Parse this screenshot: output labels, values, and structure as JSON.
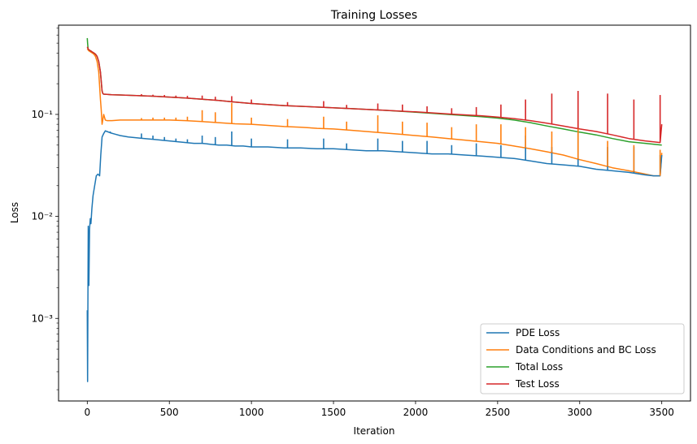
{
  "chart_data": {
    "type": "line",
    "title": "Training Losses",
    "xlabel": "Iteration",
    "ylabel": "Loss",
    "yscale": "log",
    "xlim": [
      -175,
      3675
    ],
    "ylim": [
      0.000155,
      0.75
    ],
    "x_ticks": [
      0,
      500,
      1000,
      1500,
      2000,
      2500,
      3000,
      3500
    ],
    "x_tick_labels": [
      "0",
      "500",
      "1000",
      "1500",
      "2000",
      "2500",
      "3000",
      "3500"
    ],
    "y_ticks": [
      0.001,
      0.01,
      0.1
    ],
    "y_tick_labels": [
      "10⁻³",
      "10⁻²",
      "10⁻¹"
    ],
    "grid": false,
    "legend_position": "lower-right",
    "series": [
      {
        "name": "PDE Loss",
        "color": "#1f77b4",
        "x": [
          0,
          2,
          4,
          6,
          8,
          10,
          14,
          18,
          22,
          28,
          35,
          45,
          55,
          65,
          75,
          82,
          90,
          100,
          110,
          120,
          140,
          170,
          200,
          250,
          300,
          350,
          400,
          450,
          500,
          550,
          600,
          650,
          700,
          750,
          800,
          850,
          900,
          950,
          1000,
          1100,
          1200,
          1300,
          1400,
          1500,
          1600,
          1700,
          1800,
          1900,
          2000,
          2100,
          2200,
          2300,
          2400,
          2500,
          2600,
          2700,
          2800,
          2900,
          3000,
          3100,
          3200,
          3300,
          3400,
          3450,
          3490,
          3500
        ],
        "y": [
          0.0012,
          0.00024,
          0.0015,
          0.008,
          0.0045,
          0.0021,
          0.0075,
          0.0095,
          0.0085,
          0.012,
          0.016,
          0.02,
          0.025,
          0.026,
          0.025,
          0.04,
          0.06,
          0.065,
          0.069,
          0.068,
          0.066,
          0.064,
          0.062,
          0.06,
          0.059,
          0.058,
          0.057,
          0.056,
          0.055,
          0.054,
          0.053,
          0.052,
          0.052,
          0.051,
          0.05,
          0.05,
          0.049,
          0.049,
          0.048,
          0.048,
          0.047,
          0.047,
          0.046,
          0.046,
          0.045,
          0.044,
          0.044,
          0.043,
          0.042,
          0.041,
          0.041,
          0.04,
          0.039,
          0.038,
          0.037,
          0.035,
          0.033,
          0.032,
          0.031,
          0.029,
          0.028,
          0.027,
          0.0255,
          0.025,
          0.025,
          0.04
        ]
      },
      {
        "name": "Data Conditions and BC Loss",
        "color": "#ff7f0e",
        "x": [
          0,
          10,
          20,
          30,
          40,
          50,
          60,
          70,
          80,
          85,
          90,
          100,
          110,
          120,
          150,
          200,
          300,
          400,
          500,
          600,
          700,
          800,
          900,
          1000,
          1100,
          1200,
          1300,
          1400,
          1500,
          1600,
          1700,
          1800,
          1900,
          2000,
          2100,
          2200,
          2300,
          2400,
          2500,
          2600,
          2700,
          2800,
          2900,
          3000,
          3100,
          3200,
          3300,
          3400,
          3450,
          3490,
          3500
        ],
        "y": [
          0.44,
          0.42,
          0.41,
          0.4,
          0.39,
          0.37,
          0.33,
          0.26,
          0.14,
          0.11,
          0.08,
          0.1,
          0.088,
          0.087,
          0.087,
          0.088,
          0.088,
          0.088,
          0.088,
          0.087,
          0.085,
          0.083,
          0.081,
          0.08,
          0.078,
          0.076,
          0.075,
          0.073,
          0.072,
          0.07,
          0.068,
          0.066,
          0.064,
          0.062,
          0.06,
          0.058,
          0.056,
          0.054,
          0.052,
          0.049,
          0.046,
          0.043,
          0.04,
          0.036,
          0.033,
          0.03,
          0.028,
          0.026,
          0.025,
          0.025,
          0.042
        ]
      },
      {
        "name": "Total Loss",
        "color": "#2ca02c",
        "x": [
          0,
          2,
          5,
          10,
          20,
          30,
          40,
          50,
          60,
          70,
          80,
          85,
          90,
          95,
          100,
          120,
          150,
          200,
          300,
          400,
          500,
          600,
          700,
          800,
          900,
          1000,
          1200,
          1400,
          1600,
          1800,
          2000,
          2200,
          2400,
          2500,
          2600,
          2700,
          2800,
          2900,
          3000,
          3100,
          3200,
          3300,
          3400,
          3500
        ],
        "y": [
          0.56,
          0.5,
          0.44,
          0.43,
          0.42,
          0.41,
          0.4,
          0.39,
          0.37,
          0.33,
          0.26,
          0.21,
          0.17,
          0.16,
          0.158,
          0.157,
          0.156,
          0.155,
          0.153,
          0.151,
          0.148,
          0.145,
          0.141,
          0.137,
          0.132,
          0.128,
          0.122,
          0.118,
          0.114,
          0.11,
          0.105,
          0.1,
          0.095,
          0.092,
          0.088,
          0.083,
          0.077,
          0.072,
          0.067,
          0.063,
          0.058,
          0.054,
          0.052,
          0.05
        ]
      },
      {
        "name": "Test Loss",
        "color": "#d62728",
        "x": [
          0,
          5,
          10,
          20,
          30,
          40,
          50,
          60,
          70,
          80,
          85,
          90,
          95,
          100,
          120,
          150,
          200,
          300,
          400,
          500,
          600,
          700,
          800,
          900,
          1000,
          1200,
          1400,
          1600,
          1800,
          2000,
          2200,
          2400,
          2500,
          2600,
          2700,
          2800,
          2900,
          3000,
          3100,
          3200,
          3300,
          3400,
          3490,
          3500
        ],
        "y": [
          0.46,
          0.44,
          0.43,
          0.42,
          0.41,
          0.4,
          0.39,
          0.37,
          0.33,
          0.26,
          0.21,
          0.17,
          0.16,
          0.158,
          0.157,
          0.156,
          0.155,
          0.153,
          0.151,
          0.148,
          0.145,
          0.141,
          0.137,
          0.132,
          0.128,
          0.122,
          0.118,
          0.114,
          0.11,
          0.106,
          0.101,
          0.097,
          0.094,
          0.091,
          0.087,
          0.082,
          0.077,
          0.072,
          0.068,
          0.063,
          0.058,
          0.055,
          0.053,
          0.08
        ]
      }
    ],
    "spikes": {
      "PDE Loss": {
        "x": [
          140,
          330,
          400,
          470,
          540,
          610,
          700,
          780,
          880,
          1000,
          1220,
          1440,
          1580,
          1770,
          1920,
          2070,
          2220,
          2370,
          2520,
          2670,
          2830,
          2990,
          3170,
          3330,
          3490
        ],
        "y": [
          0.068,
          0.065,
          0.062,
          0.06,
          0.058,
          0.057,
          0.062,
          0.06,
          0.068,
          0.058,
          0.057,
          0.058,
          0.052,
          0.058,
          0.055,
          0.055,
          0.05,
          0.052,
          0.05,
          0.062,
          0.048,
          0.075,
          0.048,
          0.048,
          0.04
        ]
      },
      "Data Conditions and BC Loss": {
        "x": [
          330,
          400,
          470,
          540,
          610,
          700,
          780,
          880,
          1000,
          1220,
          1440,
          1580,
          1770,
          1920,
          2070,
          2220,
          2370,
          2520,
          2670,
          2830,
          2990,
          3170,
          3330,
          3490
        ],
        "y": [
          0.092,
          0.093,
          0.093,
          0.093,
          0.095,
          0.11,
          0.105,
          0.13,
          0.093,
          0.09,
          0.095,
          0.085,
          0.098,
          0.085,
          0.083,
          0.075,
          0.08,
          0.08,
          0.075,
          0.068,
          0.088,
          0.055,
          0.05,
          0.045
        ]
      },
      "Test Loss": {
        "x": [
          330,
          400,
          470,
          540,
          610,
          700,
          780,
          880,
          1000,
          1220,
          1440,
          1580,
          1770,
          1920,
          2070,
          2220,
          2370,
          2520,
          2670,
          2830,
          2990,
          3170,
          3330,
          3490
        ],
        "y": [
          0.158,
          0.156,
          0.155,
          0.153,
          0.152,
          0.153,
          0.149,
          0.151,
          0.14,
          0.132,
          0.135,
          0.124,
          0.128,
          0.125,
          0.12,
          0.115,
          0.118,
          0.125,
          0.14,
          0.16,
          0.17,
          0.16,
          0.14,
          0.155
        ]
      }
    }
  }
}
